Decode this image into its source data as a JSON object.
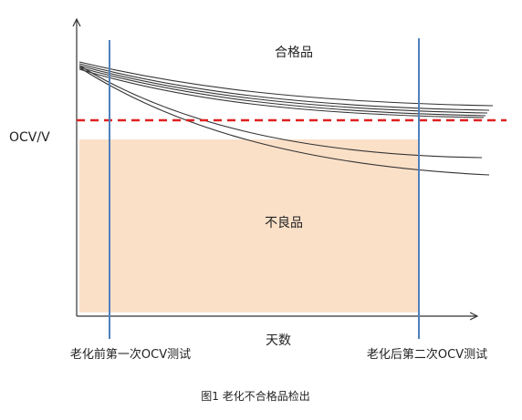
{
  "diagram": {
    "y_axis_label": "OCV/V",
    "x_axis_label": "天数",
    "region_pass_label": "合格品",
    "region_fail_label": "不良品",
    "first_test_label": "老化前第一次OCV测试",
    "second_test_label": "老化后第二次OCV测试",
    "caption": "图1 老化不合格品检出",
    "colors": {
      "fail_region": "#fbe0c8",
      "threshold": "#e02020",
      "test_line": "#4f81bd",
      "curves": "#333333",
      "axes": "#333333"
    }
  }
}
